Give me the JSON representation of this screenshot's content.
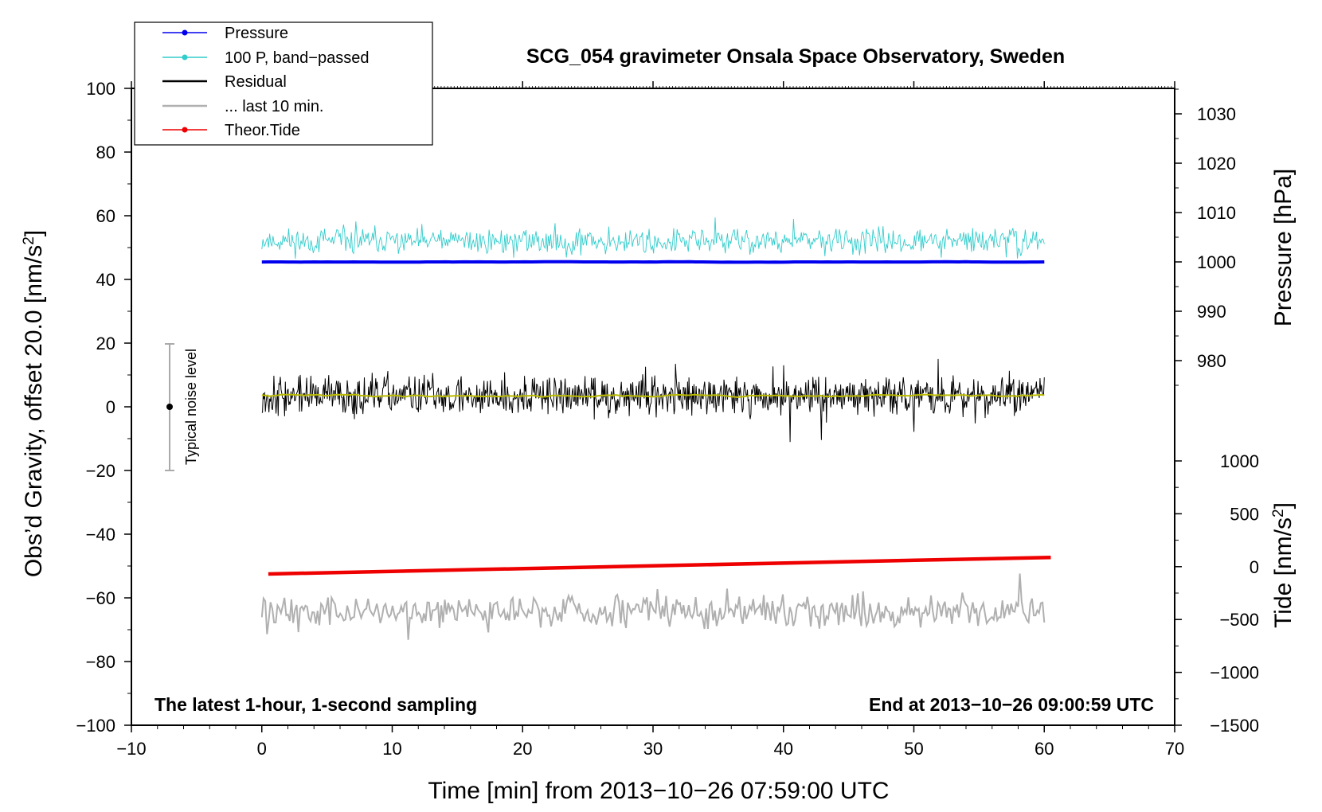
{
  "chart_data": {
    "type": "line",
    "title": "SCG_054 gravimeter Onsala Space Observatory, Sweden",
    "xlabel": "Time [min] from 2013−10−26 07:59:00 UTC",
    "ylabel_left_prefix": "Obs’d Gravity, offset 20.0 [nm/s",
    "ylabel_right_top": "Pressure [hPa]",
    "ylabel_right_bottom_prefix": "Tide [nm/s",
    "unit_superscript": "2",
    "unit_suffix": "]",
    "xlim": [
      -10,
      70
    ],
    "ylim": [
      -100,
      100
    ],
    "x_ticks": [
      -10,
      0,
      10,
      20,
      30,
      40,
      50,
      60,
      70
    ],
    "x_tick_labels": [
      "−10",
      "0",
      "10",
      "20",
      "30",
      "40",
      "50",
      "60",
      "70"
    ],
    "y_ticks": [
      -100,
      -80,
      -60,
      -40,
      -20,
      0,
      20,
      40,
      60,
      80,
      100
    ],
    "y_tick_labels": [
      "−100",
      "−80",
      "−60",
      "−40",
      "−20",
      "0",
      "20",
      "40",
      "60",
      "80",
      "100"
    ],
    "right_pressure_axis": {
      "label": "Pressure [hPa]",
      "ticks": [
        980,
        990,
        1000,
        1010,
        1020,
        1030
      ],
      "tick_labels": [
        "980",
        "990",
        "1000",
        "1010",
        "1020",
        "1030"
      ],
      "maps_to_left": [
        [
          1000,
          45.5
        ],
        [
          1030,
          92
        ]
      ]
    },
    "right_tide_axis": {
      "ticks": [
        -1500,
        -1000,
        -500,
        0,
        500,
        1000
      ],
      "tick_labels": [
        "−1500",
        "−1000",
        "−500",
        "0",
        "500",
        "1000"
      ],
      "maps_to_left": [
        [
          -1500,
          -100
        ],
        [
          1000,
          -17
        ]
      ]
    },
    "annotations": {
      "bottom_left": "The latest 1-hour, 1-second sampling",
      "bottom_right": "End at 2013−10−26 09:00:59 UTC",
      "noise_label": "Typical noise level",
      "noise_bar_x": -7,
      "noise_bar_range": [
        -20,
        20
      ]
    },
    "legend": {
      "position": "top-left",
      "entries": [
        {
          "label": "Pressure",
          "color": "#0000ee",
          "marker": true
        },
        {
          "label": "100 P, band−passed",
          "color": "#33cccc",
          "marker": true
        },
        {
          "label": "Residual",
          "color": "#000000",
          "marker": false
        },
        {
          "label": "... last 10 min.",
          "color": "#b0b0b0",
          "marker": false
        },
        {
          "label": "Theor.Tide",
          "color": "#ee0000",
          "marker": true
        }
      ]
    },
    "series": [
      {
        "name": "Pressure",
        "color": "#0000ee",
        "x_range": [
          0,
          60
        ],
        "center": 45.5,
        "amplitude": 0.4,
        "samples": 120
      },
      {
        "name": "100 P, band−passed",
        "color": "#33cccc",
        "x_range": [
          0,
          60
        ],
        "center": 52,
        "amplitude": 6,
        "samples": 700
      },
      {
        "name": "Residual",
        "color": "#000000",
        "x_range": [
          0,
          60
        ],
        "center": 3.5,
        "amplitude": 9,
        "samples": 1100
      },
      {
        "name": "Residual smoothed",
        "color": "#bbbb00",
        "x_range": [
          0,
          60
        ],
        "center": 3.5,
        "amplitude": 0.8,
        "samples": 200
      },
      {
        "name": "... last 10 min.",
        "color": "#b0b0b0",
        "x_range": [
          0,
          60
        ],
        "center": -64,
        "amplitude": 8,
        "samples": 450
      },
      {
        "name": "Theor.Tide",
        "color": "#ee0000",
        "x": [
          0.5,
          60.5
        ],
        "y": [
          -52.5,
          -47.3
        ]
      }
    ]
  }
}
